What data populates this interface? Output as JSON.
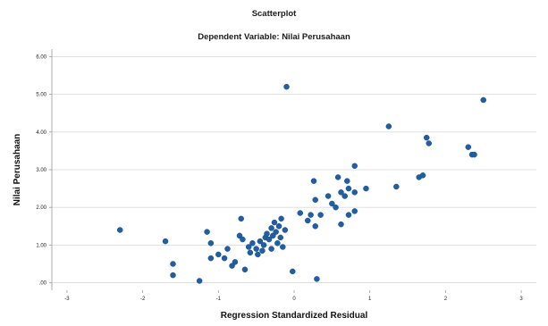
{
  "chart_data": {
    "type": "scatter",
    "title": "Scatterplot",
    "subtitle": "Dependent Variable: Nilai Perusahaan",
    "xlabel": "Regression Standardized Residual",
    "ylabel": "Nilai Perusahaan",
    "xlim": [
      -3.2,
      3.2
    ],
    "ylim": [
      -0.2,
      6.2
    ],
    "x_ticks": [
      "-3",
      "-2",
      "-1",
      "0",
      "1",
      "2",
      "3"
    ],
    "y_ticks": [
      ".00",
      "1.00",
      "2.00",
      "3.00",
      "4.00",
      "5.00",
      "6.00"
    ],
    "grid": "horizontal",
    "marker_color": "#1f5fa6",
    "points": [
      {
        "x": -2.3,
        "y": 1.4
      },
      {
        "x": -1.7,
        "y": 1.1
      },
      {
        "x": -1.6,
        "y": 0.5
      },
      {
        "x": -1.6,
        "y": 0.2
      },
      {
        "x": -1.25,
        "y": 0.05
      },
      {
        "x": -1.15,
        "y": 1.35
      },
      {
        "x": -1.1,
        "y": 1.05
      },
      {
        "x": -1.1,
        "y": 0.65
      },
      {
        "x": -1.0,
        "y": 0.75
      },
      {
        "x": -0.92,
        "y": 0.65
      },
      {
        "x": -0.88,
        "y": 0.9
      },
      {
        "x": -0.82,
        "y": 0.45
      },
      {
        "x": -0.78,
        "y": 0.55
      },
      {
        "x": -0.72,
        "y": 1.25
      },
      {
        "x": -0.7,
        "y": 1.7
      },
      {
        "x": -0.68,
        "y": 1.15
      },
      {
        "x": -0.65,
        "y": 0.35
      },
      {
        "x": -0.6,
        "y": 0.95
      },
      {
        "x": -0.58,
        "y": 0.8
      },
      {
        "x": -0.55,
        "y": 1.05
      },
      {
        "x": -0.5,
        "y": 0.9
      },
      {
        "x": -0.48,
        "y": 0.75
      },
      {
        "x": -0.45,
        "y": 1.1
      },
      {
        "x": -0.42,
        "y": 0.85
      },
      {
        "x": -0.4,
        "y": 1.0
      },
      {
        "x": -0.38,
        "y": 1.2
      },
      {
        "x": -0.36,
        "y": 1.3
      },
      {
        "x": -0.33,
        "y": 1.15
      },
      {
        "x": -0.3,
        "y": 0.9
      },
      {
        "x": -0.3,
        "y": 1.45
      },
      {
        "x": -0.28,
        "y": 1.25
      },
      {
        "x": -0.26,
        "y": 1.6
      },
      {
        "x": -0.24,
        "y": 1.35
      },
      {
        "x": -0.22,
        "y": 1.05
      },
      {
        "x": -0.2,
        "y": 1.5
      },
      {
        "x": -0.18,
        "y": 1.2
      },
      {
        "x": -0.17,
        "y": 1.7
      },
      {
        "x": -0.15,
        "y": 0.95
      },
      {
        "x": -0.12,
        "y": 1.4
      },
      {
        "x": -0.1,
        "y": 5.2
      },
      {
        "x": -0.02,
        "y": 0.3
      },
      {
        "x": 0.08,
        "y": 1.85
      },
      {
        "x": 0.18,
        "y": 1.65
      },
      {
        "x": 0.22,
        "y": 1.8
      },
      {
        "x": 0.26,
        "y": 2.7
      },
      {
        "x": 0.28,
        "y": 2.2
      },
      {
        "x": 0.28,
        "y": 1.5
      },
      {
        "x": 0.3,
        "y": 0.1
      },
      {
        "x": 0.35,
        "y": 1.8
      },
      {
        "x": 0.45,
        "y": 2.3
      },
      {
        "x": 0.5,
        "y": 2.1
      },
      {
        "x": 0.55,
        "y": 2.0
      },
      {
        "x": 0.58,
        "y": 2.8
      },
      {
        "x": 0.62,
        "y": 2.4
      },
      {
        "x": 0.62,
        "y": 1.55
      },
      {
        "x": 0.67,
        "y": 2.3
      },
      {
        "x": 0.7,
        "y": 2.7
      },
      {
        "x": 0.72,
        "y": 2.5
      },
      {
        "x": 0.72,
        "y": 1.8
      },
      {
        "x": 0.8,
        "y": 3.1
      },
      {
        "x": 0.8,
        "y": 1.9
      },
      {
        "x": 0.8,
        "y": 2.4
      },
      {
        "x": 0.95,
        "y": 2.5
      },
      {
        "x": 1.25,
        "y": 4.15
      },
      {
        "x": 1.35,
        "y": 2.55
      },
      {
        "x": 1.65,
        "y": 2.8
      },
      {
        "x": 1.7,
        "y": 2.85
      },
      {
        "x": 1.75,
        "y": 3.85
      },
      {
        "x": 1.78,
        "y": 3.7
      },
      {
        "x": 2.3,
        "y": 3.6
      },
      {
        "x": 2.35,
        "y": 3.4
      },
      {
        "x": 2.38,
        "y": 3.4
      },
      {
        "x": 2.5,
        "y": 4.85
      }
    ]
  }
}
